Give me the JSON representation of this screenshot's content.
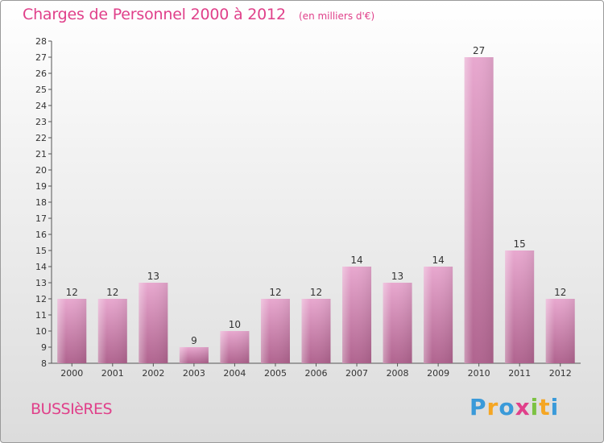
{
  "title": "Charges de Personnel 2000 à 2012",
  "subtitle": "(en milliers d'€)",
  "place": "BUSSIèRES",
  "logo": {
    "letters": [
      {
        "char": "P",
        "color": "#3a9ad9"
      },
      {
        "char": "r",
        "color": "#f5a623"
      },
      {
        "char": "o",
        "color": "#3a9ad9"
      },
      {
        "char": "x",
        "color": "#e0408a"
      },
      {
        "char": "i",
        "color": "#7cc242"
      },
      {
        "char": "t",
        "color": "#f5a623"
      },
      {
        "char": "i",
        "color": "#3a9ad9"
      }
    ]
  },
  "colors": {
    "accent": "#e0408a",
    "bar_light": "#e8a8cf",
    "bar_dark": "#b0648f"
  },
  "chart_data": {
    "type": "bar",
    "categories": [
      "2000",
      "2001",
      "2002",
      "2003",
      "2004",
      "2005",
      "2006",
      "2007",
      "2008",
      "2009",
      "2010",
      "2011",
      "2012"
    ],
    "values": [
      12,
      12,
      13,
      9,
      10,
      12,
      12,
      14,
      13,
      14,
      27,
      15,
      12
    ],
    "ylim": [
      8,
      28
    ],
    "yticks": [
      8,
      9,
      10,
      11,
      12,
      13,
      14,
      15,
      16,
      17,
      18,
      19,
      20,
      21,
      22,
      23,
      24,
      25,
      26,
      27,
      28
    ],
    "grid": false
  }
}
